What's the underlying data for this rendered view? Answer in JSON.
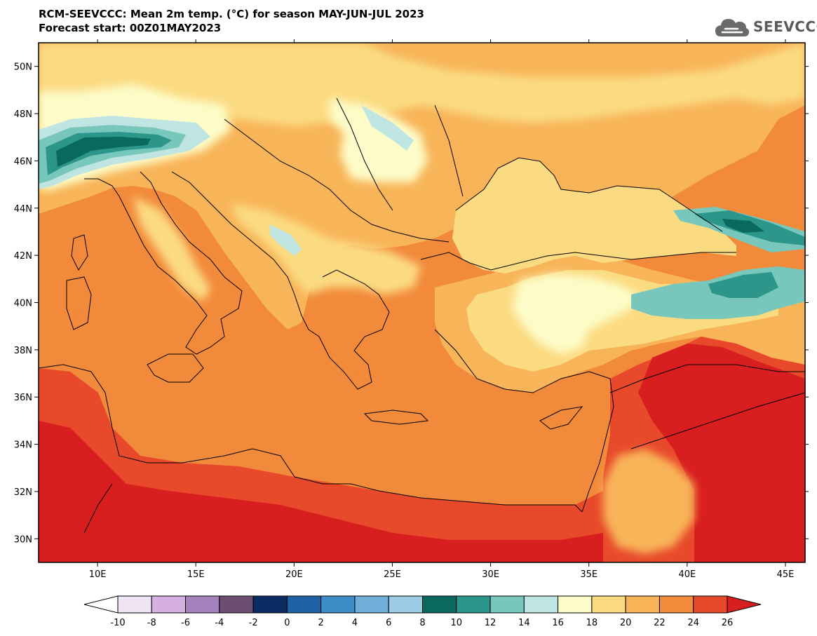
{
  "header": {
    "title": "RCM-SEEVCCC: Mean 2m temp. (°C) for season MAY-JUN-JUL 2023",
    "subtitle": "Forecast start: 00Z01MAY2023"
  },
  "logo": {
    "text": "SEEVCCC",
    "icon": "cloud-icon"
  },
  "map": {
    "projection": "lat-lon",
    "lon_range": [
      7,
      46
    ],
    "lat_range": [
      29,
      51
    ],
    "lat_ticks": [
      {
        "value": 50,
        "label": "50N"
      },
      {
        "value": 48,
        "label": "48N"
      },
      {
        "value": 46,
        "label": "46N"
      },
      {
        "value": 44,
        "label": "44N"
      },
      {
        "value": 42,
        "label": "42N"
      },
      {
        "value": 40,
        "label": "40N"
      },
      {
        "value": 38,
        "label": "38N"
      },
      {
        "value": 36,
        "label": "36N"
      },
      {
        "value": 34,
        "label": "34N"
      },
      {
        "value": 32,
        "label": "32N"
      },
      {
        "value": 30,
        "label": "30N"
      }
    ],
    "lon_ticks": [
      {
        "value": 10,
        "label": "10E"
      },
      {
        "value": 15,
        "label": "15E"
      },
      {
        "value": 20,
        "label": "20E"
      },
      {
        "value": 25,
        "label": "25E"
      },
      {
        "value": 30,
        "label": "30E"
      },
      {
        "value": 35,
        "label": "35E"
      },
      {
        "value": 40,
        "label": "40E"
      },
      {
        "value": 45,
        "label": "45E"
      }
    ]
  },
  "colorbar": {
    "unit": "°C",
    "levels": [
      "-10",
      "-8",
      "-6",
      "-4",
      "-2",
      "0",
      "2",
      "4",
      "6",
      "8",
      "10",
      "12",
      "14",
      "16",
      "18",
      "20",
      "22",
      "24",
      "26"
    ],
    "colors": [
      "#ffffff",
      "#efe4f4",
      "#d6b0e2",
      "#a783bd",
      "#6b4e72",
      "#0b2d64",
      "#1f63a6",
      "#3c8dc8",
      "#6eaed8",
      "#9dcae4",
      "#09695c",
      "#2c968a",
      "#78c7bd",
      "#bfe5e3",
      "#fdfcc8",
      "#fbdb82",
      "#f8b458",
      "#f28a3b",
      "#e8492a",
      "#d81e1e"
    ]
  }
}
